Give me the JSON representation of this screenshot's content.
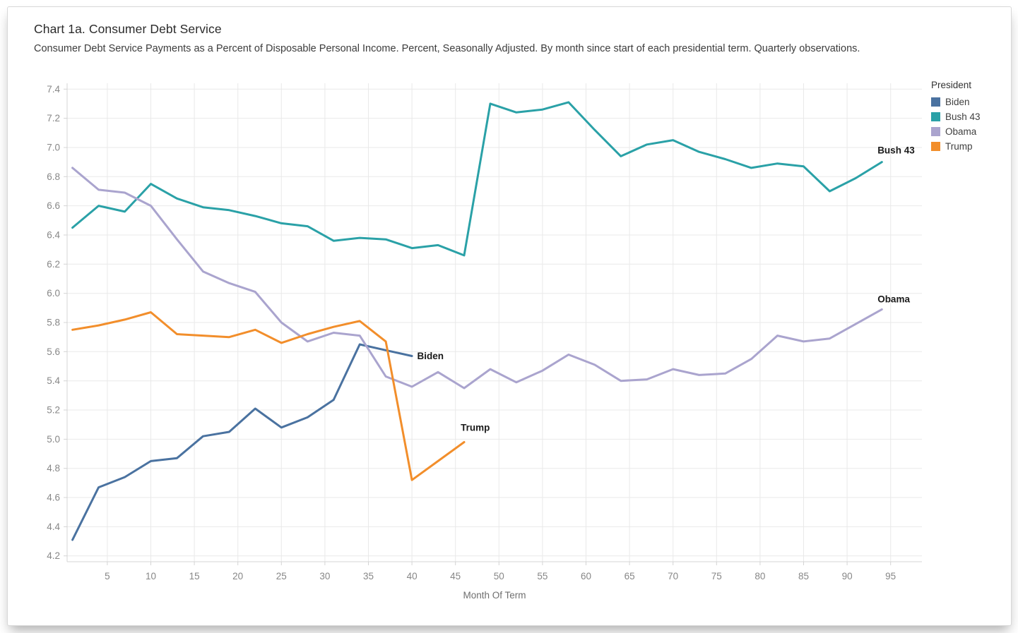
{
  "title": "Chart 1a. Consumer Debt Service",
  "subtitle": "Consumer Debt Service Payments as a Percent of Disposable Personal Income. Percent, Seasonally Adjusted. By month since start of each presidential term. Quarterly observations.",
  "legend": {
    "title": "President",
    "items": [
      {
        "label": "Biden",
        "color": "#4a72a0"
      },
      {
        "label": "Bush 43",
        "color": "#2aa1a7"
      },
      {
        "label": "Obama",
        "color": "#aaa4ce"
      },
      {
        "label": "Trump",
        "color": "#f28e2b"
      }
    ]
  },
  "chart_data": {
    "type": "line",
    "title": "Chart 1a. Consumer Debt Service",
    "xlabel": "Month Of Term",
    "ylabel": "",
    "grid": true,
    "legend_position": "right",
    "xlim": [
      0.38,
      98.6
    ],
    "ylim": [
      4.16,
      7.44
    ],
    "x_ticks": [
      5,
      10,
      15,
      20,
      25,
      30,
      35,
      40,
      45,
      50,
      55,
      60,
      65,
      70,
      75,
      80,
      85,
      90,
      95
    ],
    "y_ticks": [
      4.2,
      4.4,
      4.6,
      4.8,
      5.0,
      5.2,
      5.4,
      5.6,
      5.8,
      6.0,
      6.2,
      6.4,
      6.6,
      6.8,
      7.0,
      7.2,
      7.4
    ],
    "series": [
      {
        "name": "Biden",
        "color": "#4a72a0",
        "months": [
          1,
          4,
          7,
          10,
          13,
          16,
          19,
          22,
          25,
          28,
          31,
          34,
          37,
          40
        ],
        "values": [
          4.31,
          4.67,
          4.74,
          4.85,
          4.87,
          5.02,
          5.05,
          5.21,
          5.08,
          5.15,
          5.27,
          5.65,
          5.61,
          5.57
        ]
      },
      {
        "name": "Bush 43",
        "color": "#2aa1a7",
        "months": [
          1,
          4,
          7,
          10,
          13,
          16,
          19,
          22,
          25,
          28,
          31,
          34,
          37,
          40,
          43,
          46,
          49,
          52,
          55,
          58,
          61,
          64,
          67,
          70,
          73,
          76,
          79,
          82,
          85,
          88,
          91,
          94
        ],
        "values": [
          6.45,
          6.6,
          6.56,
          6.75,
          6.65,
          6.59,
          6.57,
          6.53,
          6.48,
          6.46,
          6.36,
          6.38,
          6.37,
          6.31,
          6.33,
          6.26,
          7.3,
          7.24,
          7.26,
          7.31,
          7.12,
          6.94,
          7.02,
          7.05,
          6.97,
          6.92,
          6.86,
          6.89,
          6.87,
          6.7,
          6.79,
          6.9
        ]
      },
      {
        "name": "Obama",
        "color": "#aaa4ce",
        "months": [
          1,
          4,
          7,
          10,
          13,
          16,
          19,
          22,
          25,
          28,
          31,
          34,
          37,
          40,
          43,
          46,
          49,
          52,
          55,
          58,
          61,
          64,
          67,
          70,
          73,
          76,
          79,
          82,
          85,
          88,
          91,
          94
        ],
        "values": [
          6.86,
          6.71,
          6.69,
          6.6,
          6.37,
          6.15,
          6.07,
          6.01,
          5.8,
          5.67,
          5.73,
          5.71,
          5.43,
          5.36,
          5.46,
          5.35,
          5.48,
          5.39,
          5.47,
          5.58,
          5.51,
          5.4,
          5.41,
          5.48,
          5.44,
          5.45,
          5.55,
          5.71,
          5.67,
          5.69,
          5.79,
          5.89
        ]
      },
      {
        "name": "Trump",
        "color": "#f28e2b",
        "months": [
          1,
          4,
          7,
          10,
          13,
          16,
          19,
          22,
          25,
          28,
          31,
          34,
          37,
          40,
          43,
          46
        ],
        "values": [
          5.75,
          5.78,
          5.82,
          5.87,
          5.72,
          5.71,
          5.7,
          5.75,
          5.66,
          5.72,
          5.77,
          5.81,
          5.67,
          4.72,
          4.85,
          4.98
        ]
      }
    ],
    "annotations": [
      {
        "text": "Biden",
        "x": 40.6,
        "y": 5.57
      },
      {
        "text": "Trump",
        "x": 45.6,
        "y": 5.08
      },
      {
        "text": "Bush 43",
        "x": 93.5,
        "y": 6.98
      },
      {
        "text": "Obama",
        "x": 93.5,
        "y": 5.96
      }
    ]
  }
}
